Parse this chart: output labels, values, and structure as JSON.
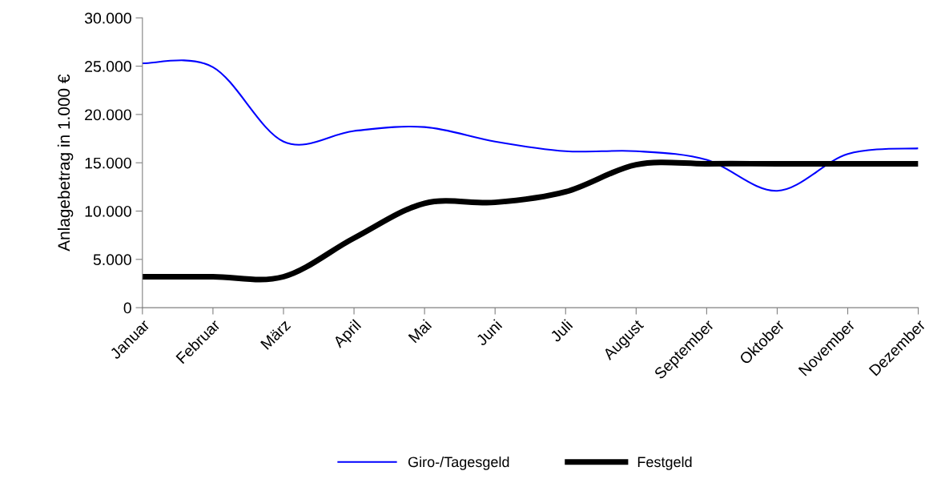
{
  "chart_data": {
    "type": "line",
    "ylabel": "Anlagebetrag in 1.000 €",
    "categories": [
      "Januar",
      "Februar",
      "März",
      "April",
      "Mai",
      "Juni",
      "Juli",
      "August",
      "September",
      "Oktober",
      "November",
      "Dezember"
    ],
    "series": [
      {
        "name": "Giro-/Tagesgeld",
        "color": "#0000ff",
        "values": [
          25300,
          24900,
          17200,
          18300,
          18700,
          17200,
          16200,
          16200,
          15300,
          12100,
          15900,
          16500
        ]
      },
      {
        "name": "Festgeld",
        "color": "#000000",
        "values": [
          3200,
          3200,
          3200,
          7200,
          10800,
          10900,
          12000,
          14800,
          14900,
          14900,
          14900,
          14900
        ]
      }
    ],
    "ylim": [
      0,
      30000
    ],
    "yticks": [
      {
        "value": 0,
        "label": "0"
      },
      {
        "value": 5000,
        "label": "5.000"
      },
      {
        "value": 10000,
        "label": "10.000"
      },
      {
        "value": 15000,
        "label": "15.000"
      },
      {
        "value": 20000,
        "label": "20.000"
      },
      {
        "value": 25000,
        "label": "25.000"
      },
      {
        "value": 30000,
        "label": "30.000"
      }
    ],
    "grid": false,
    "legend": "bottom",
    "marker": "none",
    "line_style": "solid"
  }
}
